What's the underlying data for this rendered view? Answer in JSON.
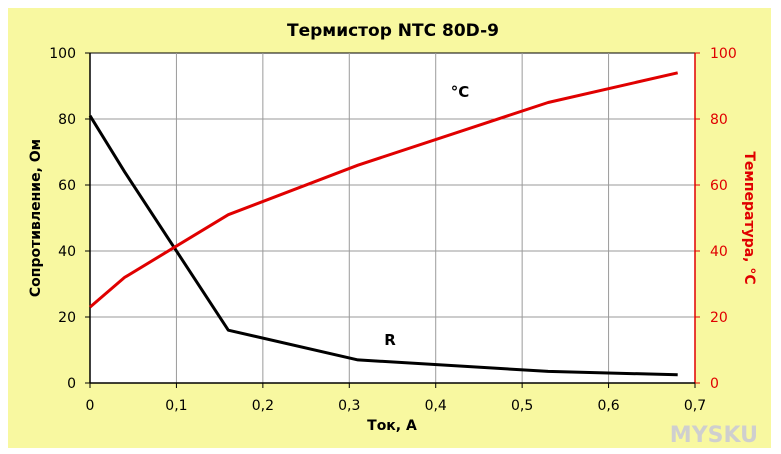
{
  "chart_data": {
    "type": "line",
    "title": "Термистор NTC 80D-9",
    "xlabel": "Ток, А",
    "ylabel_left": "Сопротивление, Ом",
    "ylabel_right": "Температура, °С",
    "xlim": [
      0,
      0.7
    ],
    "ylim_left": [
      0,
      100
    ],
    "ylim_right": [
      0,
      100
    ],
    "grid": true,
    "x_ticks": [
      "0",
      "0,1",
      "0,2",
      "0,3",
      "0,4",
      "0,5",
      "0,6",
      "0,7"
    ],
    "y_ticks_left": [
      "0",
      "20",
      "40",
      "60",
      "80",
      "100"
    ],
    "y_ticks_right": [
      "0",
      "20",
      "40",
      "60",
      "80",
      "100"
    ],
    "series": [
      {
        "name": "R",
        "axis": "left",
        "color": "#000000",
        "x": [
          0,
          0.04,
          0.16,
          0.31,
          0.53,
          0.68
        ],
        "values": [
          81,
          64,
          16,
          7,
          3.5,
          2.5
        ]
      },
      {
        "name": "°С",
        "axis": "right",
        "color": "#e00000",
        "x": [
          0,
          0.04,
          0.16,
          0.31,
          0.53,
          0.68
        ],
        "values": [
          23,
          32,
          51,
          66,
          85,
          94
        ]
      }
    ]
  },
  "colors": {
    "background": "#f8f8a0",
    "plot_area": "#ffffff",
    "grid": "#9a9a9a",
    "left_axis": "#000000",
    "right_axis": "#e00000"
  },
  "watermark": "MYSKU"
}
